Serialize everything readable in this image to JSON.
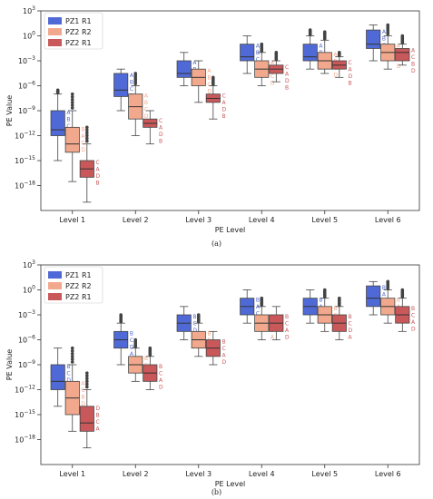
{
  "figure": {
    "captions": [
      "(a)",
      "(b)"
    ]
  },
  "chart_data": [
    {
      "type": "box",
      "panel": "(a)",
      "title": "",
      "xlabel": "PE Level",
      "ylabel": "PE Value",
      "yscale": "log",
      "ylim": [
        1e-21,
        1000
      ],
      "yticks": [
        1e-18,
        1e-15,
        1e-12,
        1e-09,
        1e-06,
        0.001,
        1,
        1000
      ],
      "ytick_labels": [
        "10^-18",
        "10^-15",
        "10^-12",
        "10^-9",
        "10^-6",
        "10^-3",
        "10^0",
        "10^3"
      ],
      "categories": [
        "Level 1",
        "Level 2",
        "Level 3",
        "Level 4",
        "Level 5",
        "Level 6"
      ],
      "legend_position": "top-left",
      "series": [
        {
          "name": "PZ1 R1",
          "color": "#4f6ad6",
          "boxes": [
            {
              "whisker_low": 1e-15,
              "q1": 1e-12,
              "median": 5e-12,
              "q3": 1e-09,
              "whisker_high": 1e-07,
              "top_outlier": 3e-07,
              "labels": [
                "A",
                "B",
                "C",
                "D"
              ]
            },
            {
              "whisker_low": 1e-09,
              "q1": 5e-08,
              "median": 3e-07,
              "q3": 3e-05,
              "whisker_high": 0.0001,
              "top_outlier": 0.0001,
              "labels": [
                "A",
                "B",
                "C",
                "D"
              ]
            },
            {
              "whisker_low": 1e-06,
              "q1": 1e-05,
              "median": 3e-05,
              "q3": 0.001,
              "whisker_high": 0.01,
              "top_outlier": 0.01,
              "labels": [
                "A",
                "B",
                "C",
                "D"
              ]
            },
            {
              "whisker_low": 3e-05,
              "q1": 0.001,
              "median": 0.003,
              "q3": 0.1,
              "whisker_high": 1,
              "top_outlier": 1,
              "labels": [
                "A",
                "B",
                "C",
                "D"
              ]
            },
            {
              "whisker_low": 0.0001,
              "q1": 0.001,
              "median": 0.003,
              "q3": 0.1,
              "whisker_high": 1,
              "top_outlier": 5,
              "labels": [
                "A",
                "B",
                "C",
                "D"
              ]
            },
            {
              "whisker_low": 0.001,
              "q1": 0.03,
              "median": 0.1,
              "q3": 5,
              "whisker_high": 20,
              "top_outlier": 20,
              "labels": [
                "A",
                "B",
                "C",
                "D"
              ]
            }
          ]
        },
        {
          "name": "PZ2 R2",
          "color": "#f2a88c",
          "boxes": [
            {
              "whisker_low": 3e-18,
              "q1": 1e-14,
              "median": 1e-13,
              "q3": 1e-11,
              "whisker_high": 1e-09,
              "top_outlier": 1e-07,
              "labels": [
                "B",
                "A",
                "C",
                "D"
              ]
            },
            {
              "whisker_low": 1e-12,
              "q1": 1e-10,
              "median": 3e-09,
              "q3": 1e-07,
              "whisker_high": 1e-06,
              "top_outlier": 3e-05,
              "labels": [
                "A",
                "B",
                "C",
                "D"
              ]
            },
            {
              "whisker_low": 1e-08,
              "q1": 1e-06,
              "median": 1e-05,
              "q3": 0.0001,
              "whisker_high": 0.001,
              "top_outlier": 0.001,
              "labels": [
                "A",
                "B",
                "C",
                "D"
              ]
            },
            {
              "whisker_low": 1e-06,
              "q1": 1e-05,
              "median": 0.0001,
              "q3": 0.001,
              "whisker_high": 0.01,
              "top_outlier": 0.1,
              "labels": [
                "A",
                "B",
                "C",
                "D"
              ]
            },
            {
              "whisker_low": 3e-05,
              "q1": 0.0001,
              "median": 0.001,
              "q3": 0.01,
              "whisker_high": 0.3,
              "top_outlier": 3,
              "labels": [
                "A",
                "B",
                "C",
                "D"
              ]
            },
            {
              "whisker_low": 0.0001,
              "q1": 0.001,
              "median": 0.01,
              "q3": 0.1,
              "whisker_high": 1,
              "top_outlier": 20,
              "labels": [
                "A",
                "B",
                "C",
                "D"
              ]
            }
          ]
        },
        {
          "name": "PZ2 R1",
          "color": "#c9585a",
          "boxes": [
            {
              "whisker_low": 1e-20,
              "q1": 1e-17,
              "median": 1e-16,
              "q3": 1e-15,
              "whisker_high": 1e-13,
              "top_outlier": 1e-11,
              "labels": [
                "C",
                "A",
                "D",
                "B"
              ]
            },
            {
              "whisker_low": 1e-13,
              "q1": 1e-11,
              "median": 3e-11,
              "q3": 1e-10,
              "whisker_high": 1e-09,
              "top_outlier": 1e-09,
              "labels": [
                "C",
                "A",
                "D",
                "B"
              ]
            },
            {
              "whisker_low": 1e-10,
              "q1": 1e-08,
              "median": 3e-08,
              "q3": 1e-07,
              "whisker_high": 1e-06,
              "top_outlier": 1e-05,
              "labels": [
                "C",
                "A",
                "D",
                "B"
              ]
            },
            {
              "whisker_low": 3e-06,
              "q1": 3e-05,
              "median": 0.0001,
              "q3": 0.0003,
              "whisker_high": 0.001,
              "top_outlier": 0.01,
              "labels": [
                "C",
                "A",
                "D",
                "B"
              ]
            },
            {
              "whisker_low": 1e-05,
              "q1": 0.0001,
              "median": 0.0003,
              "q3": 0.001,
              "whisker_high": 0.003,
              "top_outlier": 0.01,
              "labels": [
                "C",
                "A",
                "D",
                "B"
              ]
            },
            {
              "whisker_low": 0.0003,
              "q1": 0.001,
              "median": 0.01,
              "q3": 0.03,
              "whisker_high": 0.1,
              "top_outlier": 1,
              "labels": [
                "A",
                "C",
                "B",
                "D"
              ]
            }
          ]
        }
      ]
    },
    {
      "type": "box",
      "panel": "(b)",
      "title": "",
      "xlabel": "PE Level",
      "ylabel": "PE Value",
      "yscale": "log",
      "ylim": [
        1e-21,
        1000
      ],
      "yticks": [
        1e-18,
        1e-15,
        1e-12,
        1e-09,
        1e-06,
        0.001,
        1,
        1000
      ],
      "ytick_labels": [
        "10^-18",
        "10^-15",
        "10^-12",
        "10^-9",
        "10^-6",
        "10^-3",
        "10^0",
        "10^3"
      ],
      "categories": [
        "Level 1",
        "Level 2",
        "Level 3",
        "Level 4",
        "Level 5",
        "Level 6"
      ],
      "legend_position": "top-left",
      "series": [
        {
          "name": "PZ1 R1",
          "color": "#4f6ad6",
          "boxes": [
            {
              "whisker_low": 1e-14,
              "q1": 1e-12,
              "median": 1e-11,
              "q3": 1e-09,
              "whisker_high": 1e-07,
              "top_outlier": 1e-07,
              "labels": [
                "B",
                "C",
                "D",
                "A"
              ]
            },
            {
              "whisker_low": 1e-09,
              "q1": 1e-07,
              "median": 1e-06,
              "q3": 1e-05,
              "whisker_high": 0.0001,
              "top_outlier": 0.001,
              "labels": [
                "B",
                "C",
                "D",
                "A"
              ]
            },
            {
              "whisker_low": 1e-06,
              "q1": 1e-05,
              "median": 0.0001,
              "q3": 0.001,
              "whisker_high": 0.01,
              "top_outlier": 0.01,
              "labels": [
                "B",
                "C",
                "D",
                "A"
              ]
            },
            {
              "whisker_low": 0.0001,
              "q1": 0.001,
              "median": 0.01,
              "q3": 0.1,
              "whisker_high": 1,
              "top_outlier": 1,
              "labels": [
                "B",
                "A",
                "C",
                "D"
              ]
            },
            {
              "whisker_low": 0.0001,
              "q1": 0.001,
              "median": 0.01,
              "q3": 0.1,
              "whisker_high": 1,
              "top_outlier": 1,
              "labels": [
                "B",
                "A",
                "C",
                "D"
              ]
            },
            {
              "whisker_low": 0.001,
              "q1": 0.01,
              "median": 0.1,
              "q3": 3,
              "whisker_high": 10,
              "top_outlier": 10,
              "labels": [
                "B",
                "A",
                "C",
                "D"
              ]
            }
          ]
        },
        {
          "name": "PZ2 R2",
          "color": "#f2a88c",
          "boxes": [
            {
              "whisker_low": 1e-17,
              "q1": 1e-15,
              "median": 1e-13,
              "q3": 1e-11,
              "whisker_high": 1e-09,
              "top_outlier": 1e-07,
              "labels": [
                "A",
                "C",
                "B",
                "D"
              ]
            },
            {
              "whisker_low": 1e-11,
              "q1": 1e-10,
              "median": 1e-09,
              "q3": 1e-08,
              "whisker_high": 1e-07,
              "top_outlier": 1e-06,
              "labels": [
                "B",
                "C",
                "D",
                "A"
              ]
            },
            {
              "whisker_low": 1e-08,
              "q1": 1e-07,
              "median": 1e-06,
              "q3": 1e-05,
              "whisker_high": 0.0001,
              "top_outlier": 0.001,
              "labels": [
                "B",
                "C",
                "D",
                "A"
              ]
            },
            {
              "whisker_low": 1e-06,
              "q1": 1e-05,
              "median": 0.0001,
              "q3": 0.001,
              "whisker_high": 0.01,
              "top_outlier": 0.1,
              "labels": [
                "B",
                "C",
                "D",
                "A"
              ]
            },
            {
              "whisker_low": 1e-05,
              "q1": 0.0001,
              "median": 0.001,
              "q3": 0.01,
              "whisker_high": 0.1,
              "top_outlier": 1,
              "labels": [
                "B",
                "C",
                "D",
                "A"
              ]
            },
            {
              "whisker_low": 0.0001,
              "q1": 0.001,
              "median": 0.01,
              "q3": 0.1,
              "whisker_high": 1,
              "top_outlier": 10,
              "labels": [
                "B",
                "A",
                "C",
                "D"
              ]
            }
          ]
        },
        {
          "name": "PZ2 R1",
          "color": "#c9585a",
          "boxes": [
            {
              "whisker_low": 1e-19,
              "q1": 1e-17,
              "median": 1e-16,
              "q3": 1e-14,
              "whisker_high": 1e-12,
              "top_outlier": 1e-10,
              "labels": [
                "D",
                "B",
                "C",
                "A"
              ]
            },
            {
              "whisker_low": 1e-12,
              "q1": 1e-11,
              "median": 1e-10,
              "q3": 1e-09,
              "whisker_high": 1e-08,
              "top_outlier": 1e-07,
              "labels": [
                "B",
                "C",
                "A",
                "D"
              ]
            },
            {
              "whisker_low": 1e-09,
              "q1": 1e-08,
              "median": 1e-07,
              "q3": 1e-06,
              "whisker_high": 1e-05,
              "top_outlier": 1e-05,
              "labels": [
                "B",
                "C",
                "A",
                "D"
              ]
            },
            {
              "whisker_low": 1e-06,
              "q1": 1e-05,
              "median": 0.0001,
              "q3": 0.001,
              "whisker_high": 0.01,
              "top_outlier": 0.01,
              "labels": [
                "B",
                "C",
                "A",
                "D"
              ]
            },
            {
              "whisker_low": 1e-06,
              "q1": 1e-05,
              "median": 0.0001,
              "q3": 0.001,
              "whisker_high": 0.01,
              "top_outlier": 0.1,
              "labels": [
                "B",
                "C",
                "D",
                "A"
              ]
            },
            {
              "whisker_low": 1e-05,
              "q1": 0.0001,
              "median": 0.001,
              "q3": 0.01,
              "whisker_high": 0.1,
              "top_outlier": 1,
              "labels": [
                "B",
                "C",
                "A",
                "D"
              ]
            }
          ]
        }
      ]
    }
  ]
}
